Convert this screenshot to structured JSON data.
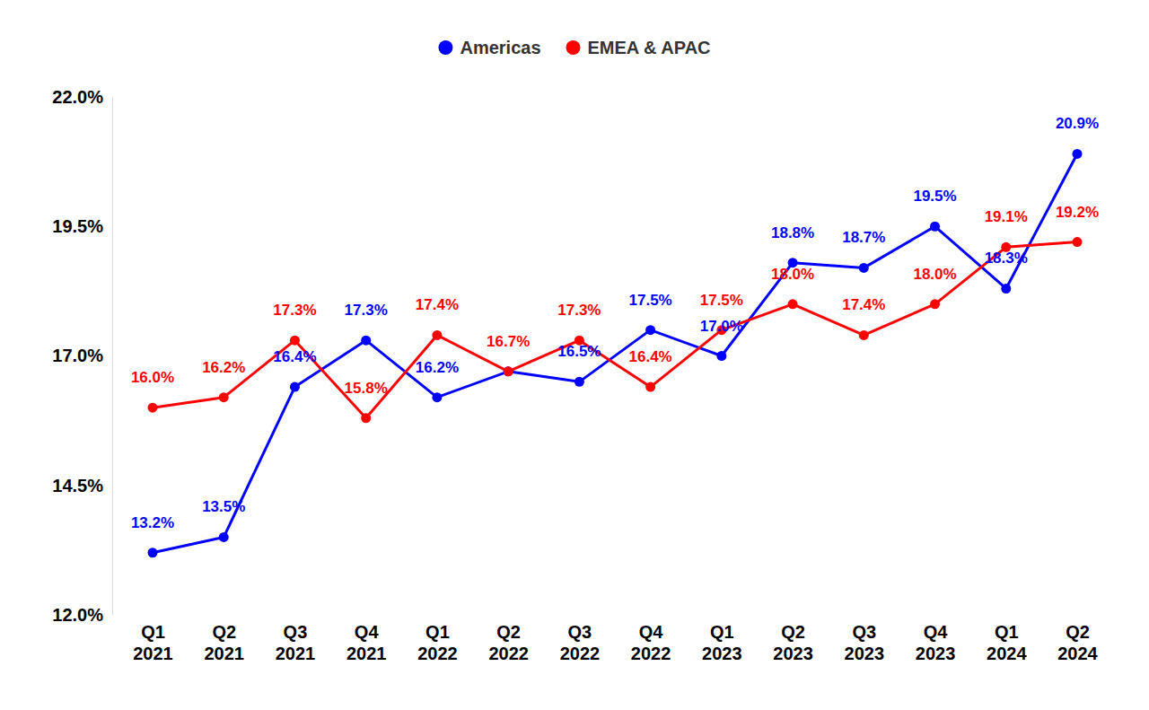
{
  "chart_data": {
    "type": "line",
    "categories": [
      "Q1 2021",
      "Q2 2021",
      "Q3 2021",
      "Q4 2021",
      "Q1 2022",
      "Q2 2022",
      "Q3 2022",
      "Q4 2022",
      "Q1 2023",
      "Q2 2023",
      "Q3 2023",
      "Q4 2023",
      "Q1 2024",
      "Q2 2024"
    ],
    "series": [
      {
        "name": "Americas",
        "color": "#0000ff",
        "marker": "circle",
        "values": [
          13.2,
          13.5,
          16.4,
          17.3,
          16.2,
          16.7,
          16.5,
          17.5,
          17.0,
          18.8,
          18.7,
          19.5,
          18.3,
          20.9
        ],
        "value_labels": [
          "13.2%",
          "13.5%",
          "16.4%",
          "17.3%",
          "16.2%",
          null,
          "16.5%",
          "17.5%",
          "17.0%",
          "18.8%",
          "18.7%",
          "19.5%",
          "18.3%",
          "20.9%"
        ]
      },
      {
        "name": "EMEA & APAC",
        "color": "#ff0000",
        "marker": "circle",
        "values": [
          16.0,
          16.2,
          17.3,
          15.8,
          17.4,
          16.7,
          17.3,
          16.4,
          17.5,
          18.0,
          17.4,
          18.0,
          19.1,
          19.2
        ],
        "value_labels": [
          "16.0%",
          "16.2%",
          "17.3%",
          "15.8%",
          "17.4%",
          "16.7%",
          "17.3%",
          "16.4%",
          "17.5%",
          "18.0%",
          "17.4%",
          "18.0%",
          "19.1%",
          "19.2%"
        ]
      }
    ],
    "ylim": [
      12,
      22
    ],
    "yticks": [
      {
        "value": 12,
        "label": "12.0%"
      },
      {
        "value": 14.5,
        "label": "14.5%"
      },
      {
        "value": 17,
        "label": "17.0%"
      },
      {
        "value": 19.5,
        "label": "19.5%"
      },
      {
        "value": 22,
        "label": "22.0%"
      }
    ],
    "grid": false,
    "legend": "top",
    "data_labels": true
  }
}
